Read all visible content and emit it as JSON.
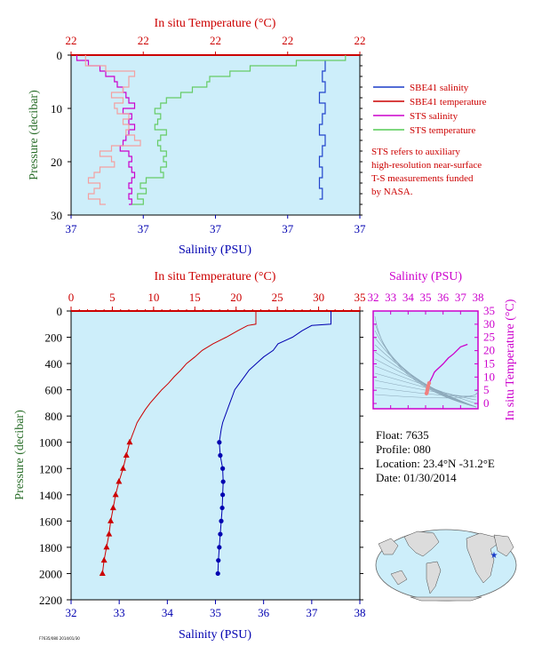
{
  "colors": {
    "plot_bg": "#cdeefa",
    "red": "#cc0000",
    "blue": "#0000b0",
    "green_axis": "#2a6e2a",
    "magenta": "#cc00cc",
    "sts_salinity": "#cc00cc",
    "sts_temperature": "#66cc66",
    "sbe_salinity": "#2244cc",
    "sbe_temperature_pink": "#f4a0a0",
    "land": "#dcdcdc",
    "ocean": "#cdeefa"
  },
  "top_panel": {
    "top_axis_title": "In situ Temperature (°C)",
    "top_ticks": [
      "22",
      "22",
      "22",
      "22",
      "22"
    ],
    "bottom_axis_title": "Salinity (PSU)",
    "bottom_ticks": [
      "37",
      "37",
      "37",
      "37",
      "37"
    ],
    "y_axis_title": "Pressure (decibar)",
    "y_ticks": [
      "0",
      "10",
      "20",
      "30"
    ],
    "legend": [
      {
        "label": "SBE41 salinity",
        "color": "#1a3cc8"
      },
      {
        "label": "SBE41 temperature",
        "color": "#cc0000"
      },
      {
        "label": "STS salinity",
        "color": "#cc00cc"
      },
      {
        "label": "STS temperature",
        "color": "#55cc55"
      }
    ],
    "note_lines": [
      "STS refers to auxiliary",
      "high-resolution near-surface",
      "T-S measurements funded",
      "by NASA."
    ]
  },
  "main_panel": {
    "top_axis_title": "In situ Temperature (°C)",
    "top_ticks": [
      "0",
      "5",
      "10",
      "15",
      "20",
      "25",
      "30",
      "35"
    ],
    "bottom_axis_title": "Salinity (PSU)",
    "bottom_ticks": [
      "32",
      "33",
      "34",
      "35",
      "36",
      "37",
      "38"
    ],
    "y_axis_title": "Pressure (decibar)",
    "y_ticks": [
      "0",
      "200",
      "400",
      "600",
      "800",
      "1000",
      "1200",
      "1400",
      "1600",
      "1800",
      "2000",
      "2200"
    ]
  },
  "ts_panel": {
    "top_axis_title": "Salinity (PSU)",
    "top_ticks": [
      "32",
      "33",
      "34",
      "35",
      "36",
      "37",
      "38"
    ],
    "right_axis_title": "In situ Temperature (°C)",
    "right_ticks": [
      "0",
      "5",
      "10",
      "15",
      "20",
      "25",
      "30",
      "35"
    ]
  },
  "info": {
    "float": "Float:  7635",
    "profile": "Profile:  080",
    "location": "Location:  23.4°N  -31.2°E",
    "date": "Date:  01/30/2014"
  },
  "footer_text": "F7635/080 2014/01/30",
  "chart_data": [
    {
      "type": "line",
      "title": "",
      "xlabel": "Salinity (PSU)",
      "x2label": "In situ Temperature (°C)",
      "ylabel": "Pressure (decibar)",
      "ylim": [
        0,
        2200
      ],
      "xlim_salinity": [
        32,
        38
      ],
      "xlim_temperature": [
        0,
        35
      ],
      "series": [
        {
          "name": "Temperature",
          "axis": "temperature",
          "pressure": [
            0,
            100,
            110,
            150,
            200,
            250,
            300,
            350,
            400,
            450,
            500,
            550,
            600,
            650,
            700,
            750,
            800,
            850,
            900,
            950,
            1000,
            1100,
            1200,
            1300,
            1400,
            1500,
            1600,
            1700,
            1800,
            1900,
            2000
          ],
          "values": [
            22.4,
            22.4,
            21.4,
            20.2,
            18.8,
            17.2,
            15.9,
            15.0,
            14.0,
            13.3,
            12.5,
            11.8,
            11.0,
            10.3,
            9.6,
            9.0,
            8.5,
            8.0,
            7.7,
            7.4,
            7.1,
            6.7,
            6.3,
            5.8,
            5.4,
            5.1,
            4.8,
            4.6,
            4.3,
            4.0,
            3.8
          ]
        },
        {
          "name": "Salinity",
          "axis": "salinity",
          "pressure": [
            0,
            100,
            110,
            150,
            200,
            250,
            300,
            350,
            400,
            450,
            500,
            550,
            600,
            650,
            700,
            750,
            800,
            850,
            900,
            950,
            1000,
            1100,
            1200,
            1300,
            1400,
            1500,
            1600,
            1700,
            1800,
            1900,
            2000
          ],
          "values": [
            37.4,
            37.4,
            37.0,
            36.8,
            36.6,
            36.3,
            36.2,
            36.0,
            35.85,
            35.7,
            35.6,
            35.5,
            35.4,
            35.35,
            35.3,
            35.25,
            35.2,
            35.15,
            35.12,
            35.1,
            35.08,
            35.1,
            35.15,
            35.16,
            35.15,
            35.14,
            35.12,
            35.1,
            35.08,
            35.06,
            35.05
          ]
        }
      ]
    },
    {
      "type": "line",
      "title": "",
      "xlabel": "Salinity (PSU)",
      "x2label": "In situ Temperature (°C)",
      "ylabel": "Pressure (decibar)",
      "ylim": [
        0,
        30
      ],
      "series": [
        {
          "name": "SBE41 salinity",
          "pressure": [
            1,
            3,
            5,
            7,
            9,
            11,
            13,
            15,
            17,
            19,
            21,
            23,
            25,
            27
          ],
          "values": [
            0.88,
            0.87,
            0.88,
            0.86,
            0.88,
            0.87,
            0.86,
            0.88,
            0.87,
            0.86,
            0.87,
            0.86,
            0.87,
            0.86
          ]
        },
        {
          "name": "STS salinity",
          "pressure": [
            0,
            1,
            2,
            3,
            4,
            5,
            6,
            7,
            8,
            9,
            10,
            11,
            12,
            13,
            14,
            15,
            16,
            17,
            18,
            19,
            20,
            21,
            22,
            23,
            24,
            25,
            26,
            27,
            28
          ],
          "values": [
            0.02,
            0.06,
            0.1,
            0.12,
            0.15,
            0.16,
            0.18,
            0.19,
            0.2,
            0.22,
            0.18,
            0.21,
            0.2,
            0.22,
            0.2,
            0.19,
            0.18,
            0.17,
            0.2,
            0.21,
            0.2,
            0.21,
            0.22,
            0.21,
            0.2,
            0.21,
            0.2,
            0.21,
            0.2
          ]
        },
        {
          "name": "STS temperature",
          "pressure": [
            0,
            1,
            2,
            3,
            4,
            5,
            6,
            7,
            8,
            9,
            10,
            11,
            12,
            13,
            14,
            15,
            16,
            17,
            18,
            19,
            20,
            21,
            22,
            23,
            24,
            25,
            26,
            27,
            28
          ],
          "values": [
            0.95,
            0.78,
            0.62,
            0.55,
            0.48,
            0.47,
            0.42,
            0.38,
            0.33,
            0.31,
            0.29,
            0.31,
            0.3,
            0.29,
            0.33,
            0.31,
            0.3,
            0.31,
            0.33,
            0.32,
            0.33,
            0.31,
            0.32,
            0.26,
            0.24,
            0.26,
            0.23,
            0.25,
            0.21
          ]
        },
        {
          "name": "SBE41 temperature",
          "pressure": [
            0,
            2,
            3,
            4,
            5,
            6,
            7,
            8,
            9,
            10,
            11,
            12,
            13,
            14,
            15,
            16,
            17,
            18,
            19,
            20,
            21,
            22,
            23,
            24,
            25,
            26,
            27,
            28
          ],
          "values": [
            0.05,
            0.12,
            0.22,
            0.2,
            0.2,
            0.18,
            0.14,
            0.18,
            0.15,
            0.16,
            0.2,
            0.18,
            0.2,
            0.19,
            0.22,
            0.24,
            0.14,
            0.1,
            0.14,
            0.15,
            0.1,
            0.08,
            0.06,
            0.1,
            0.08,
            0.06,
            0.1,
            0.12
          ]
        }
      ]
    },
    {
      "type": "scatter",
      "title": "",
      "xlabel": "Salinity (PSU)",
      "ylabel": "In situ Temperature (°C)",
      "xlim": [
        32,
        38
      ],
      "ylim": [
        -2,
        35
      ],
      "series": [
        {
          "name": "T-S",
          "x": [
            35.05,
            35.08,
            35.1,
            35.12,
            35.15,
            35.2,
            35.3,
            35.4,
            35.5,
            35.6,
            35.85,
            36.0,
            36.3,
            36.6,
            37.0,
            37.4
          ],
          "y": [
            3.8,
            4.3,
            5.1,
            5.8,
            6.7,
            7.7,
            9.0,
            10.3,
            11.8,
            12.5,
            14.0,
            15.0,
            17.2,
            18.8,
            21.4,
            22.4
          ]
        }
      ]
    }
  ]
}
